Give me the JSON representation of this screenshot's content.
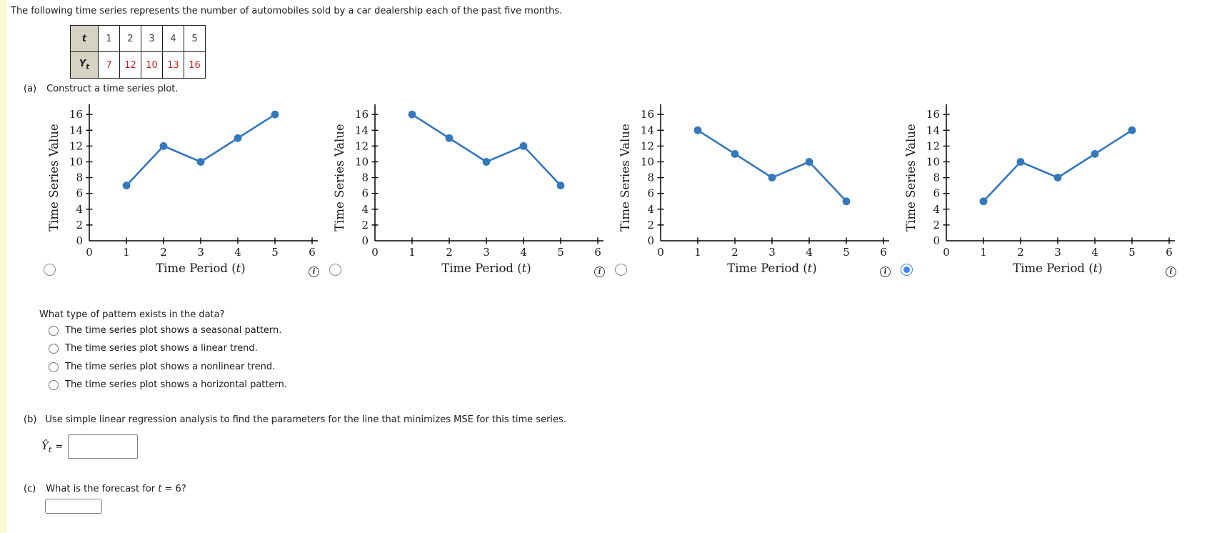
{
  "page": {
    "intro": "The following time series represents the number of automobiles sold by a car dealership each of the past five months.",
    "part_a_label": "(a)",
    "part_a_text": "Construct a time series plot.",
    "part_b_label": "(b)",
    "part_b_text": "Use simple linear regression analysis to find the parameters for the line that minimizes MSE for this time series.",
    "part_c_label": "(c)",
    "part_c_text_parts": [
      "What is the forecast for ",
      "t",
      " = 6?"
    ]
  },
  "table": {
    "row1_header": "t",
    "row1_values": [
      "1",
      "2",
      "3",
      "4",
      "5"
    ],
    "row2_header_base": "Y",
    "row2_header_sub": "t",
    "row2_values": [
      "7",
      "12",
      "10",
      "13",
      "16"
    ]
  },
  "charts": {
    "selected_index": 3,
    "info_glyph": "i"
  },
  "chart_data": [
    {
      "type": "line",
      "x": [
        1,
        2,
        3,
        4,
        5
      ],
      "values": [
        7,
        12,
        10,
        13,
        16
      ],
      "xlabel_parts": [
        "Time Period (",
        "t",
        ")"
      ],
      "ylabel": "Time Series Value",
      "xlim": [
        0,
        6
      ],
      "ylim": [
        0,
        16
      ],
      "xtick_step": 1,
      "ytick_step": 2,
      "grid": false,
      "color": "#3377bd"
    },
    {
      "type": "line",
      "x": [
        1,
        2,
        3,
        4,
        5
      ],
      "values": [
        16,
        13,
        10,
        12,
        7
      ],
      "xlabel_parts": [
        "Time Period (",
        "t",
        ")"
      ],
      "ylabel": "Time Series Value",
      "xlim": [
        0,
        6
      ],
      "ylim": [
        0,
        16
      ],
      "xtick_step": 1,
      "ytick_step": 2,
      "grid": false,
      "color": "#3377bd"
    },
    {
      "type": "line",
      "x": [
        1,
        2,
        3,
        4,
        5
      ],
      "values": [
        14,
        11,
        8,
        10,
        5
      ],
      "xlabel_parts": [
        "Time Period (",
        "t",
        ")"
      ],
      "ylabel": "Time Series Value",
      "xlim": [
        0,
        6
      ],
      "ylim": [
        0,
        16
      ],
      "xtick_step": 1,
      "ytick_step": 2,
      "grid": false,
      "color": "#3377bd"
    },
    {
      "type": "line",
      "x": [
        1,
        2,
        3,
        4,
        5
      ],
      "values": [
        5,
        10,
        8,
        11,
        14
      ],
      "xlabel_parts": [
        "Time Period (",
        "t",
        ")"
      ],
      "ylabel": "Time Series Value",
      "xlim": [
        0,
        6
      ],
      "ylim": [
        0,
        16
      ],
      "xtick_step": 1,
      "ytick_step": 2,
      "grid": false,
      "color": "#3377bd"
    }
  ],
  "pattern": {
    "question": "What type of pattern exists in the data?",
    "options": [
      "The time series plot shows a seasonal pattern.",
      "The time series plot shows a linear trend.",
      "The time series plot shows a nonlinear trend.",
      "The time series plot shows a horizontal pattern."
    ]
  },
  "formula": {
    "yhat": "Ŷ",
    "sub": "t",
    "equals": "="
  },
  "inputs": {
    "regression_value": "",
    "forecast_value": ""
  },
  "colors": {
    "accent": "#4285f4",
    "line": "#3377bd",
    "table_value_red": "#cc2020",
    "table_header_bg": "#d6d2c4",
    "page_strip": "#fcf9d6"
  }
}
